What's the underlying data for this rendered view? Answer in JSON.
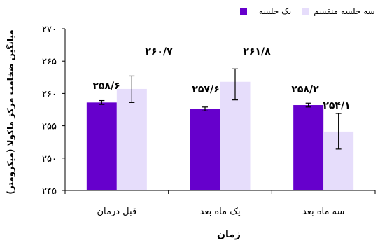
{
  "chart_data": {
    "type": "bar",
    "categories": [
      "قبل درمان",
      "یک ماه بعد",
      "سه ماه بعد"
    ],
    "series": [
      {
        "name": "یک جلسه",
        "color": "#6600CC",
        "values": [
          258.6,
          257.6,
          258.2
        ],
        "labels": [
          "۲۵۸/۶",
          "۲۵۷/۶",
          "۲۵۸/۲"
        ],
        "err_low": [
          258.3,
          257.3,
          257.9
        ],
        "err_high": [
          258.9,
          257.9,
          258.5
        ]
      },
      {
        "name": "سه جلسه منقسم",
        "color": "#E6DDFB",
        "values": [
          260.7,
          261.8,
          254.1
        ],
        "labels": [
          "۲۶۰/۷",
          "۲۶۱/۸",
          "۲۵۴/۱"
        ],
        "err_low": [
          258.6,
          259.0,
          251.4
        ],
        "err_high": [
          262.7,
          263.8,
          256.9
        ]
      }
    ],
    "xlabel": "زمان",
    "ylabel": "میانگین ضخامت مرکز ماکولا (میکرومتر)",
    "ylim": [
      245,
      270
    ],
    "yticks": [
      245,
      250,
      255,
      260,
      265,
      270
    ],
    "ytick_labels": [
      "۲۴۵",
      "۲۵۰",
      "۲۵۵",
      "۲۶۰",
      "۲۶۵",
      "۲۷۰"
    ],
    "grid": false,
    "legend_position": "top-right"
  }
}
